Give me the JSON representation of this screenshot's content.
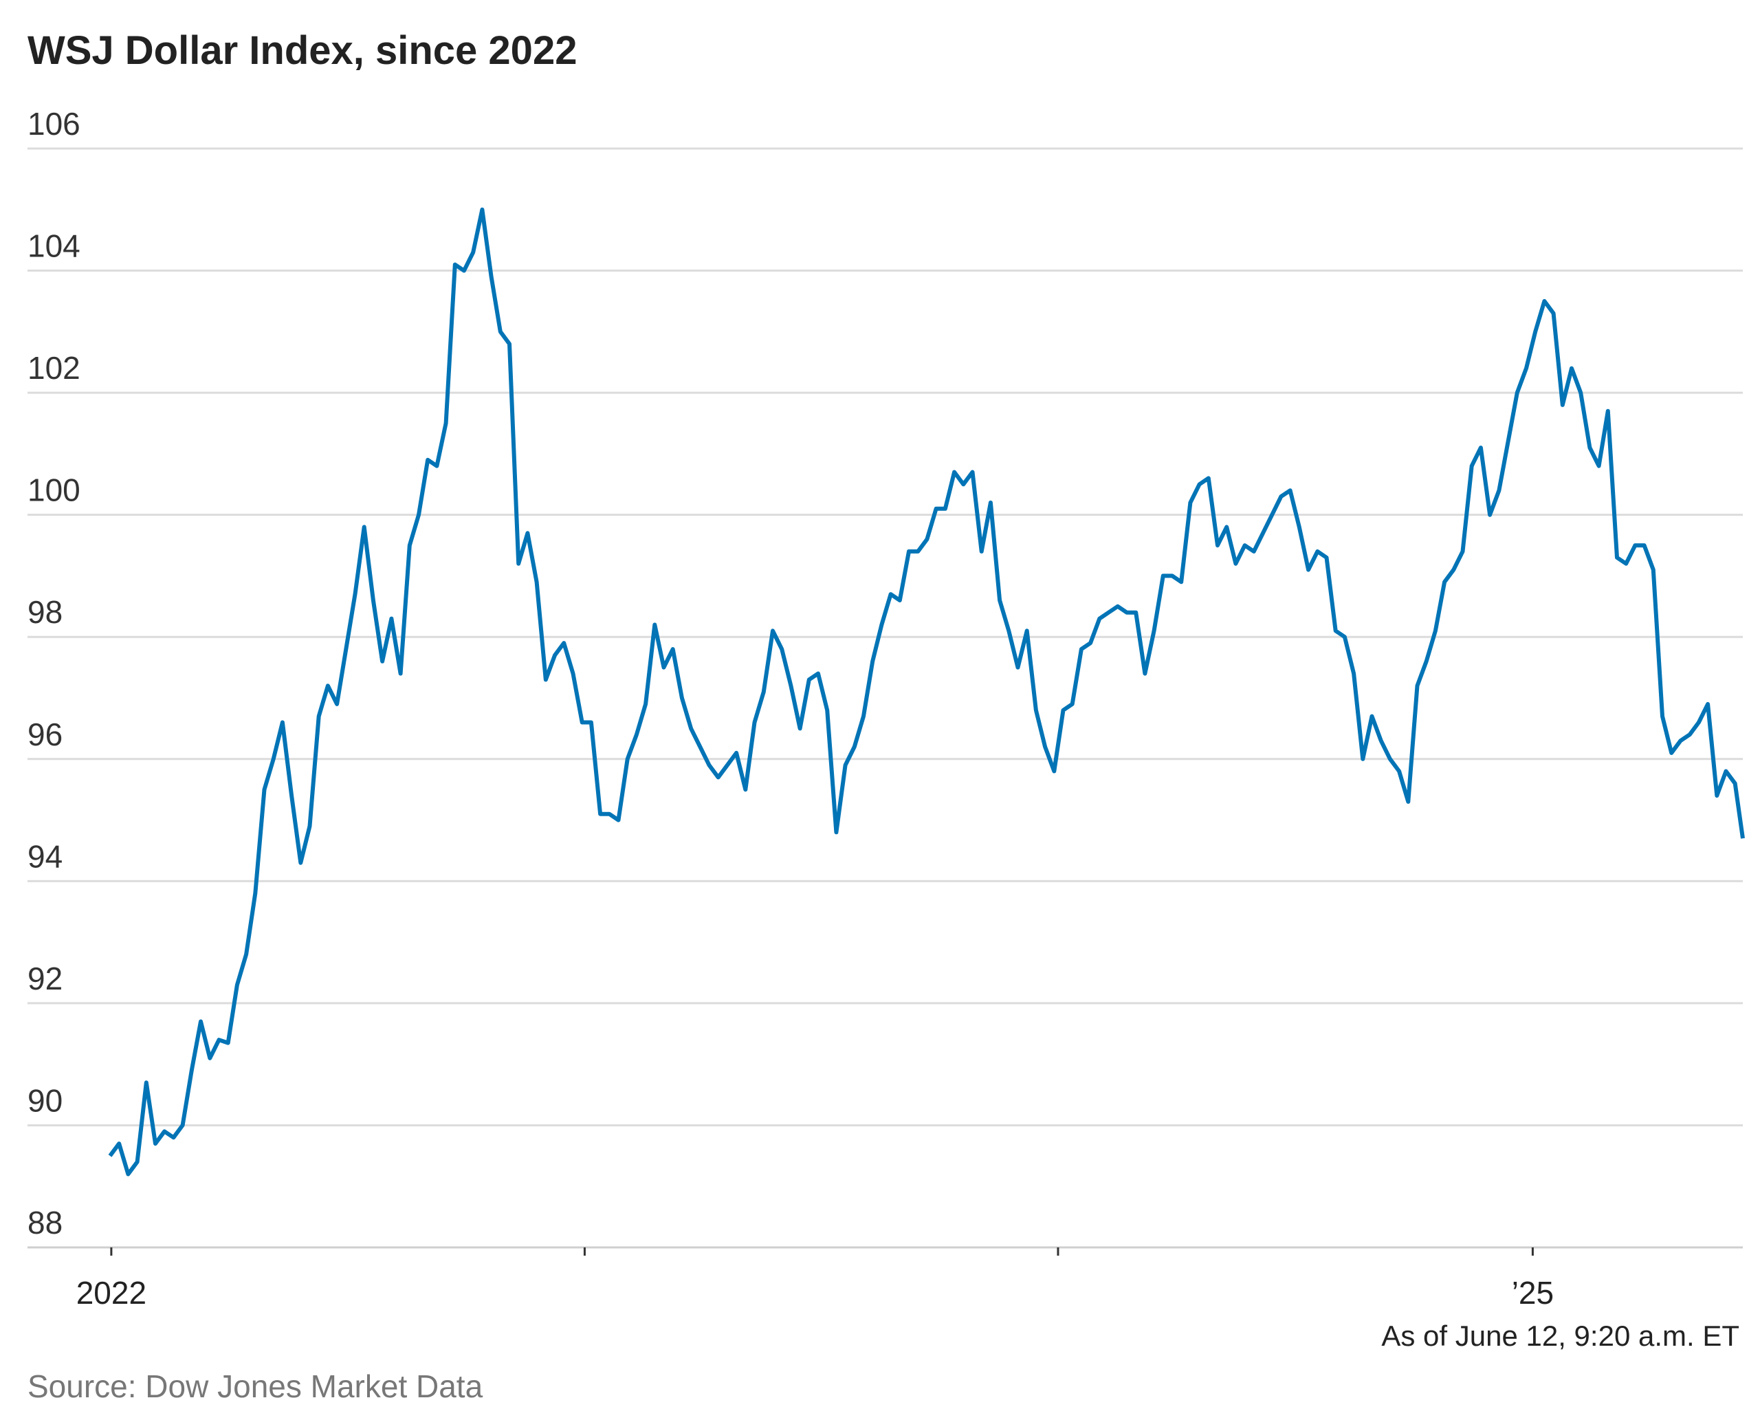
{
  "chart_data": {
    "type": "line",
    "title": "WSJ Dollar Index, since 2022",
    "xlabel": "",
    "ylabel": "",
    "ylim": [
      88,
      106
    ],
    "yticks": [
      88,
      90,
      92,
      94,
      96,
      98,
      100,
      102,
      104,
      106
    ],
    "y_tick_labels": [
      "88",
      "90",
      "92",
      "94",
      "96",
      "98",
      "100",
      "102",
      "104",
      "106"
    ],
    "xlim": [
      "2021-12-31",
      "2025-06-12"
    ],
    "x_ticks": [
      {
        "date": "2022-01-01",
        "label": "2022"
      },
      {
        "date": "2023-01-01",
        "label": ""
      },
      {
        "date": "2024-01-01",
        "label": ""
      },
      {
        "date": "2025-01-01",
        "label": "’25"
      }
    ],
    "grid": true,
    "legend": "none",
    "line_color": "#0274b6",
    "note": "As of June 12, 9:20 a.m. ET",
    "source": "Source: Dow Jones Market Data",
    "series": [
      {
        "x": [
          "2021-12-31",
          "2022-01-07",
          "2022-01-14",
          "2022-01-21",
          "2022-01-28",
          "2022-02-04",
          "2022-02-11",
          "2022-02-18",
          "2022-02-25",
          "2022-03-04",
          "2022-03-11",
          "2022-03-18",
          "2022-03-25",
          "2022-04-01",
          "2022-04-08",
          "2022-04-15",
          "2022-04-22",
          "2022-04-29",
          "2022-05-06",
          "2022-05-13",
          "2022-05-20",
          "2022-05-27",
          "2022-06-03",
          "2022-06-10",
          "2022-06-17",
          "2022-06-24",
          "2022-07-01",
          "2022-07-08",
          "2022-07-15",
          "2022-07-22",
          "2022-07-29",
          "2022-08-05",
          "2022-08-12",
          "2022-08-19",
          "2022-08-26",
          "2022-09-02",
          "2022-09-09",
          "2022-09-16",
          "2022-09-23",
          "2022-09-30",
          "2022-10-07",
          "2022-10-14",
          "2022-10-21",
          "2022-10-28",
          "2022-11-04",
          "2022-11-11",
          "2022-11-18",
          "2022-11-25",
          "2022-12-02",
          "2022-12-09",
          "2022-12-16",
          "2022-12-23",
          "2022-12-30",
          "2023-01-06",
          "2023-01-13",
          "2023-01-20",
          "2023-01-27",
          "2023-02-03",
          "2023-02-10",
          "2023-02-17",
          "2023-02-24",
          "2023-03-03",
          "2023-03-10",
          "2023-03-17",
          "2023-03-24",
          "2023-03-31",
          "2023-04-07",
          "2023-04-14",
          "2023-04-21",
          "2023-04-28",
          "2023-05-05",
          "2023-05-12",
          "2023-05-19",
          "2023-05-26",
          "2023-06-02",
          "2023-06-09",
          "2023-06-16",
          "2023-06-23",
          "2023-06-30",
          "2023-07-07",
          "2023-07-14",
          "2023-07-21",
          "2023-07-28",
          "2023-08-04",
          "2023-08-11",
          "2023-08-18",
          "2023-08-25",
          "2023-09-01",
          "2023-09-08",
          "2023-09-15",
          "2023-09-22",
          "2023-09-29",
          "2023-10-06",
          "2023-10-13",
          "2023-10-20",
          "2023-10-27",
          "2023-11-03",
          "2023-11-10",
          "2023-11-17",
          "2023-11-24",
          "2023-12-01",
          "2023-12-08",
          "2023-12-15",
          "2023-12-22",
          "2023-12-29",
          "2024-01-05",
          "2024-01-12",
          "2024-01-19",
          "2024-01-26",
          "2024-02-02",
          "2024-02-09",
          "2024-02-16",
          "2024-02-23",
          "2024-03-01",
          "2024-03-08",
          "2024-03-15",
          "2024-03-22",
          "2024-03-29",
          "2024-04-05",
          "2024-04-12",
          "2024-04-19",
          "2024-04-26",
          "2024-05-03",
          "2024-05-10",
          "2024-05-17",
          "2024-05-24",
          "2024-05-31",
          "2024-06-07",
          "2024-06-14",
          "2024-06-21",
          "2024-06-28",
          "2024-07-05",
          "2024-07-12",
          "2024-07-19",
          "2024-07-26",
          "2024-08-02",
          "2024-08-09",
          "2024-08-16",
          "2024-08-23",
          "2024-08-30",
          "2024-09-06",
          "2024-09-13",
          "2024-09-20",
          "2024-09-27",
          "2024-10-04",
          "2024-10-11",
          "2024-10-18",
          "2024-10-25",
          "2024-11-01",
          "2024-11-08",
          "2024-11-15",
          "2024-11-22",
          "2024-11-29",
          "2024-12-06",
          "2024-12-13",
          "2024-12-20",
          "2024-12-27",
          "2025-01-03",
          "2025-01-10",
          "2025-01-17",
          "2025-01-24",
          "2025-01-31",
          "2025-02-07",
          "2025-02-14",
          "2025-02-21",
          "2025-02-28",
          "2025-03-07",
          "2025-03-14",
          "2025-03-21",
          "2025-03-28",
          "2025-04-04",
          "2025-04-11",
          "2025-04-18",
          "2025-04-25",
          "2025-05-02",
          "2025-05-09",
          "2025-05-16",
          "2025-05-23",
          "2025-05-30",
          "2025-06-06",
          "2025-06-12"
        ],
        "values": [
          89.5,
          89.7,
          89.2,
          89.4,
          90.7,
          89.7,
          89.9,
          89.8,
          90.0,
          90.9,
          91.7,
          91.1,
          91.4,
          91.35,
          92.3,
          92.8,
          93.8,
          95.5,
          96.0,
          96.6,
          95.4,
          94.3,
          94.9,
          96.7,
          97.2,
          96.9,
          97.8,
          98.7,
          99.8,
          98.6,
          97.6,
          98.3,
          97.4,
          99.5,
          100.0,
          100.9,
          100.8,
          101.5,
          104.1,
          104.0,
          104.3,
          105.0,
          103.9,
          103.0,
          102.8,
          99.2,
          99.7,
          98.9,
          97.3,
          97.7,
          97.9,
          97.4,
          96.6,
          96.6,
          95.1,
          95.1,
          95.0,
          96.0,
          96.4,
          96.9,
          98.2,
          97.5,
          97.8,
          97.0,
          96.5,
          96.2,
          95.9,
          95.7,
          95.9,
          96.1,
          95.5,
          96.6,
          97.1,
          98.1,
          97.8,
          97.2,
          96.5,
          97.3,
          97.4,
          96.8,
          94.8,
          95.9,
          96.2,
          96.7,
          97.6,
          98.2,
          98.7,
          98.6,
          99.4,
          99.4,
          99.6,
          100.1,
          100.1,
          100.7,
          100.5,
          100.7,
          99.4,
          100.2,
          98.6,
          98.1,
          97.5,
          98.1,
          96.8,
          96.2,
          95.8,
          96.8,
          96.9,
          97.8,
          97.9,
          98.3,
          98.4,
          98.5,
          98.4,
          98.4,
          97.4,
          98.1,
          99.0,
          99.0,
          98.9,
          100.2,
          100.5,
          100.6,
          99.5,
          99.8,
          99.2,
          99.5,
          99.4,
          99.7,
          100.0,
          100.3,
          100.4,
          99.8,
          99.1,
          99.4,
          99.3,
          98.1,
          98.0,
          97.4,
          96.0,
          96.7,
          96.3,
          96.0,
          95.8,
          95.3,
          97.2,
          97.6,
          98.1,
          98.9,
          99.1,
          99.4,
          100.8,
          101.1,
          100.0,
          100.4,
          101.2,
          102.0,
          102.4,
          103.0,
          103.5,
          103.3,
          101.8,
          102.4,
          102.0,
          101.1,
          100.8,
          101.7,
          99.3,
          99.2,
          99.5,
          99.5,
          99.1,
          96.7,
          96.1,
          96.3,
          96.4,
          96.6,
          96.9,
          95.4,
          95.8,
          95.6,
          94.7
        ]
      }
    ]
  }
}
